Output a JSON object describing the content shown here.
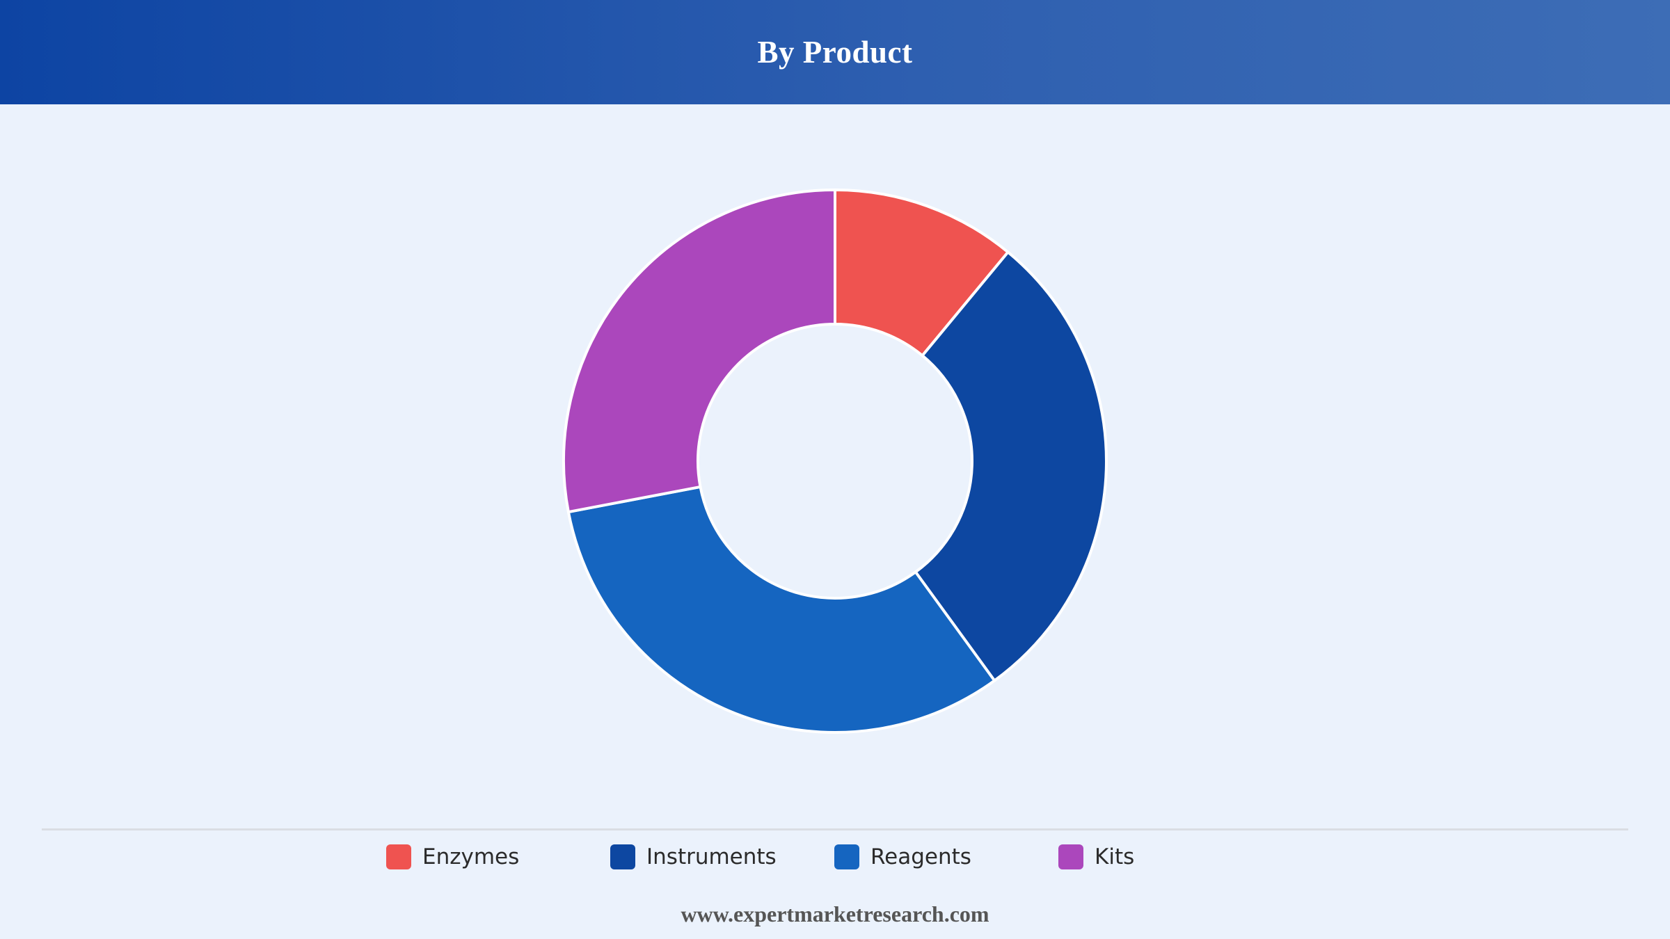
{
  "header": {
    "title": "By Product"
  },
  "chart_data": {
    "type": "pie",
    "variant": "donut",
    "title": "By Product",
    "categories": [
      "Enzymes",
      "Instruments",
      "Reagents",
      "Kits"
    ],
    "values": [
      11,
      29,
      32,
      28
    ],
    "unit": "%",
    "colors": [
      "#ef5350",
      "#0d47a1",
      "#1565c0",
      "#ab47bc"
    ],
    "legend_position": "bottom",
    "start_angle": "12 o'clock, clockwise"
  },
  "footer": {
    "source": "www.expertmarketresearch.com"
  }
}
